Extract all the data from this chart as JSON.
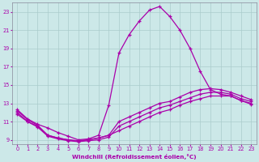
{
  "xlabel": "Windchill (Refroidissement éolien,°C)",
  "bg_color": "#cce8e8",
  "line_color": "#aa00aa",
  "grid_color": "#aacccc",
  "ylim": [
    8.5,
    24.0
  ],
  "xlim": [
    -0.5,
    23.5
  ],
  "yticks": [
    9,
    11,
    13,
    15,
    17,
    19,
    21,
    23
  ],
  "xticks": [
    0,
    1,
    2,
    3,
    4,
    5,
    6,
    7,
    8,
    9,
    10,
    11,
    12,
    13,
    14,
    15,
    16,
    17,
    18,
    19,
    20,
    21,
    22,
    23
  ],
  "curves": [
    [
      12.2,
      11.2,
      10.6,
      9.5,
      9.2,
      9.0,
      8.9,
      9.0,
      9.2,
      9.5,
      10.0,
      10.5,
      11.0,
      11.5,
      12.0,
      12.3,
      12.8,
      13.2,
      13.5,
      13.8,
      13.8,
      13.8,
      13.3,
      13.0
    ],
    [
      12.0,
      11.0,
      10.4,
      9.4,
      9.1,
      8.9,
      8.8,
      8.9,
      9.0,
      9.3,
      10.5,
      11.0,
      11.5,
      12.0,
      12.5,
      12.8,
      13.2,
      13.6,
      14.0,
      14.2,
      14.2,
      14.0,
      13.5,
      13.2
    ],
    [
      11.8,
      11.0,
      10.5,
      9.5,
      9.2,
      9.0,
      8.85,
      9.0,
      9.2,
      9.5,
      11.0,
      11.5,
      12.0,
      12.5,
      13.0,
      13.2,
      13.7,
      14.2,
      14.5,
      14.6,
      14.5,
      14.2,
      13.8,
      13.4
    ],
    [
      12.3,
      11.3,
      10.7,
      10.3,
      9.8,
      9.4,
      9.0,
      9.1,
      9.5,
      12.8,
      18.5,
      20.5,
      22.0,
      23.2,
      23.6,
      22.5,
      21.0,
      19.0,
      16.5,
      14.5,
      14.0,
      13.8,
      13.3,
      12.9
    ]
  ]
}
